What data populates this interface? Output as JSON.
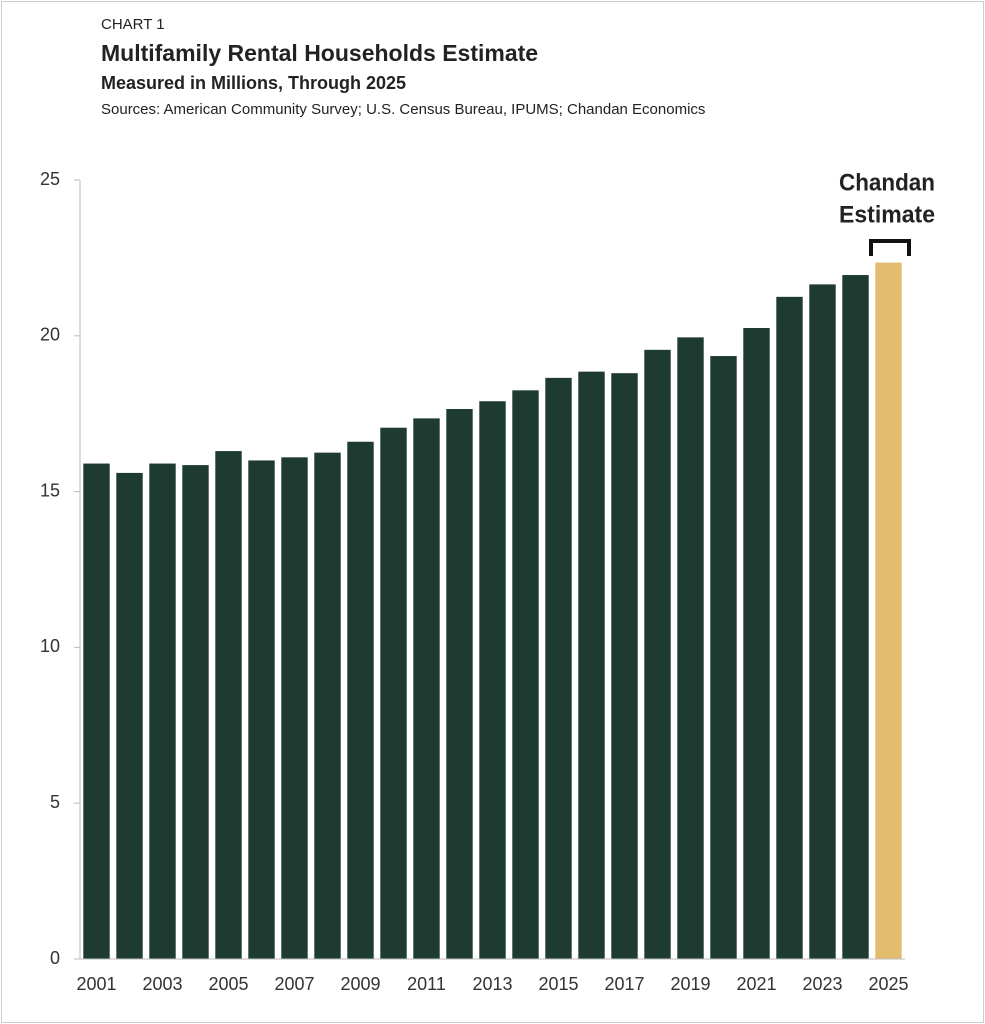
{
  "chart_data": {
    "type": "bar",
    "label": "CHART 1",
    "title": "Multifamily Rental Households Estimate",
    "subtitle": "Measured in Millions, Through 2025",
    "source": "Sources: American Community Survey; U.S. Census Bureau, IPUMS; Chandan Economics",
    "annotation": [
      "Chandan",
      "Estimate"
    ],
    "categories": [
      "2001",
      null,
      "2003",
      null,
      "2005",
      null,
      "2007",
      null,
      "2009",
      null,
      "2011",
      null,
      "2013",
      null,
      "2015",
      null,
      "2017",
      null,
      "2019",
      null,
      "2021",
      null,
      "2023",
      null,
      "2025"
    ],
    "values": [
      15.9,
      15.6,
      15.9,
      15.85,
      16.3,
      16.0,
      16.1,
      16.25,
      16.6,
      17.05,
      17.35,
      17.65,
      17.9,
      18.25,
      18.65,
      18.85,
      18.8,
      19.55,
      19.95,
      19.35,
      20.25,
      21.25,
      21.65,
      21.95,
      22.35
    ],
    "colors": [
      "#1d3b30",
      "#1d3b30",
      "#1d3b30",
      "#1d3b30",
      "#1d3b30",
      "#1d3b30",
      "#1d3b30",
      "#1d3b30",
      "#1d3b30",
      "#1d3b30",
      "#1d3b30",
      "#1d3b30",
      "#1d3b30",
      "#1d3b30",
      "#1d3b30",
      "#1d3b30",
      "#1d3b30",
      "#1d3b30",
      "#1d3b30",
      "#1d3b30",
      "#1d3b30",
      "#1d3b30",
      "#1d3b30",
      "#1d3b30",
      "#e3bc6f"
    ],
    "ylim": [
      0,
      25
    ],
    "yticks": [
      0,
      5,
      10,
      15,
      20,
      25
    ],
    "grid": false
  }
}
